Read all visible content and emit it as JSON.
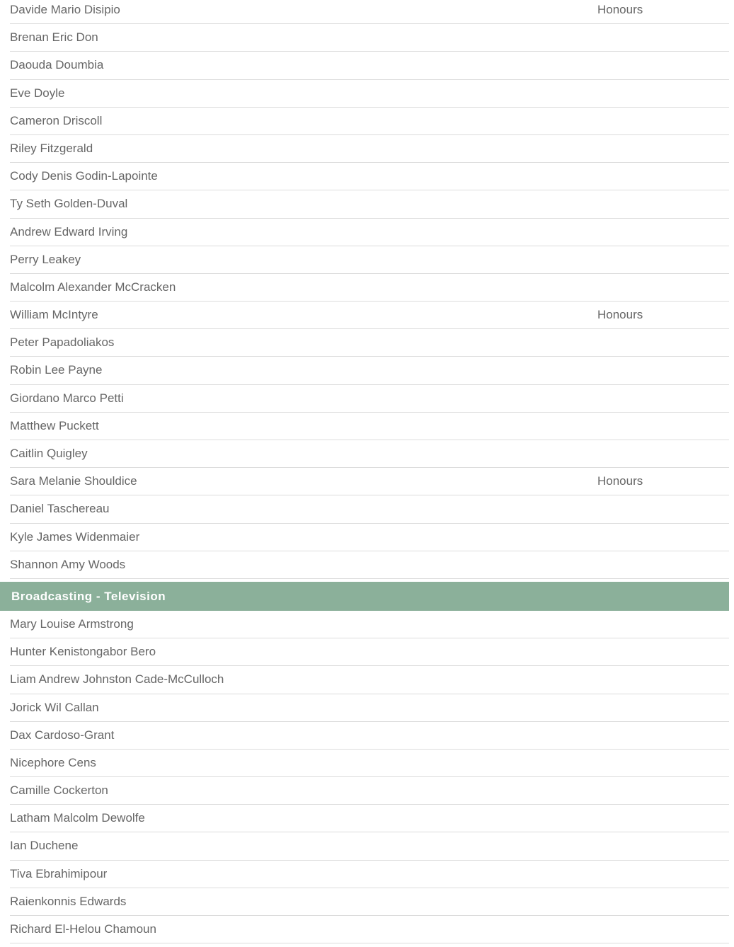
{
  "sections": [
    {
      "title": "",
      "rows": [
        {
          "name": "Davide Mario Disipio",
          "award": "Honours"
        },
        {
          "name": "Brenan Eric Don",
          "award": ""
        },
        {
          "name": "Daouda Doumbia",
          "award": ""
        },
        {
          "name": "Eve Doyle",
          "award": ""
        },
        {
          "name": "Cameron Driscoll",
          "award": ""
        },
        {
          "name": "Riley Fitzgerald",
          "award": ""
        },
        {
          "name": "Cody Denis Godin-Lapointe",
          "award": ""
        },
        {
          "name": "Ty Seth Golden-Duval",
          "award": ""
        },
        {
          "name": "Andrew Edward Irving",
          "award": ""
        },
        {
          "name": "Perry Leakey",
          "award": ""
        },
        {
          "name": "Malcolm Alexander McCracken",
          "award": ""
        },
        {
          "name": "William McIntyre",
          "award": "Honours"
        },
        {
          "name": "Peter Papadoliakos",
          "award": ""
        },
        {
          "name": "Robin Lee Payne",
          "award": ""
        },
        {
          "name": "Giordano Marco Petti",
          "award": ""
        },
        {
          "name": "Matthew Puckett",
          "award": ""
        },
        {
          "name": "Caitlin Quigley",
          "award": ""
        },
        {
          "name": "Sara Melanie Shouldice",
          "award": "Honours"
        },
        {
          "name": "Daniel Taschereau",
          "award": ""
        },
        {
          "name": "Kyle James Widenmaier",
          "award": ""
        },
        {
          "name": "Shannon Amy Woods",
          "award": ""
        }
      ]
    },
    {
      "title": "Broadcasting - Television",
      "rows": [
        {
          "name": "Mary Louise Armstrong",
          "award": ""
        },
        {
          "name": "Hunter Kenistongabor Bero",
          "award": ""
        },
        {
          "name": "Liam Andrew Johnston Cade-McCulloch",
          "award": ""
        },
        {
          "name": "Jorick Wil Callan",
          "award": ""
        },
        {
          "name": "Dax Cardoso-Grant",
          "award": ""
        },
        {
          "name": "Nicephore Cens",
          "award": ""
        },
        {
          "name": "Camille Cockerton",
          "award": ""
        },
        {
          "name": "Latham Malcolm Dewolfe",
          "award": ""
        },
        {
          "name": "Ian Duchene",
          "award": ""
        },
        {
          "name": "Tiva Ebrahimipour",
          "award": ""
        },
        {
          "name": "Raienkonnis Edwards",
          "award": ""
        },
        {
          "name": "Richard El-Helou Chamoun",
          "award": ""
        }
      ]
    }
  ],
  "colors": {
    "section_header_bg": "#8bb09a",
    "text": "#666666"
  }
}
